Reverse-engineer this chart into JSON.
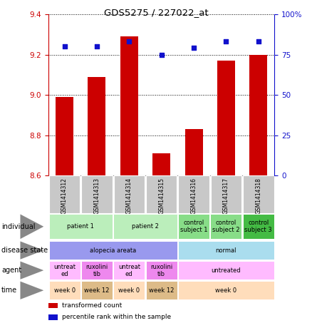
{
  "title": "GDS5275 / 227022_at",
  "samples": [
    "GSM1414312",
    "GSM1414313",
    "GSM1414314",
    "GSM1414315",
    "GSM1414316",
    "GSM1414317",
    "GSM1414318"
  ],
  "bar_values": [
    8.99,
    9.09,
    9.29,
    8.71,
    8.83,
    9.17,
    9.2
  ],
  "bar_bottom": 8.6,
  "blue_pct": [
    80,
    80,
    83,
    75,
    79,
    83,
    83
  ],
  "ylim": [
    8.6,
    9.4
  ],
  "y_ticks": [
    8.6,
    8.8,
    9.0,
    9.2,
    9.4
  ],
  "right_ticks": [
    0,
    25,
    50,
    75,
    100
  ],
  "bar_color": "#CC0000",
  "blue_color": "#1111CC",
  "left_tick_color": "#CC0000",
  "right_tick_color": "#1111CC",
  "x_tick_bg": "#C8C8C8",
  "individual_cells": [
    {
      "text": "patient 1",
      "colspan": 2,
      "color": "#BBEEBB"
    },
    {
      "text": "patient 2",
      "colspan": 2,
      "color": "#BBEEBB"
    },
    {
      "text": "control\nsubject 1",
      "colspan": 1,
      "color": "#88DD88"
    },
    {
      "text": "control\nsubject 2",
      "colspan": 1,
      "color": "#88DD88"
    },
    {
      "text": "control\nsubject 3",
      "colspan": 1,
      "color": "#44BB44"
    }
  ],
  "disease_cells": [
    {
      "text": "alopecia areata",
      "colspan": 4,
      "color": "#9999EE"
    },
    {
      "text": "normal",
      "colspan": 3,
      "color": "#AADDEE"
    }
  ],
  "agent_cells": [
    {
      "text": "untreat\ned",
      "colspan": 1,
      "color": "#FFBBFF"
    },
    {
      "text": "ruxolini\ntib",
      "colspan": 1,
      "color": "#EE88EE"
    },
    {
      "text": "untreat\ned",
      "colspan": 1,
      "color": "#FFBBFF"
    },
    {
      "text": "ruxolini\ntib",
      "colspan": 1,
      "color": "#EE88EE"
    },
    {
      "text": "untreated",
      "colspan": 3,
      "color": "#FFBBFF"
    }
  ],
  "time_cells": [
    {
      "text": "week 0",
      "colspan": 1,
      "color": "#FFDDBB"
    },
    {
      "text": "week 12",
      "colspan": 1,
      "color": "#DDBB88"
    },
    {
      "text": "week 0",
      "colspan": 1,
      "color": "#FFDDBB"
    },
    {
      "text": "week 12",
      "colspan": 1,
      "color": "#DDBB88"
    },
    {
      "text": "week 0",
      "colspan": 3,
      "color": "#FFDDBB"
    }
  ],
  "row_labels": [
    "individual",
    "disease state",
    "agent",
    "time"
  ],
  "legend_items": [
    {
      "color": "#CC0000",
      "label": "transformed count"
    },
    {
      "color": "#1111CC",
      "label": "percentile rank within the sample"
    }
  ]
}
